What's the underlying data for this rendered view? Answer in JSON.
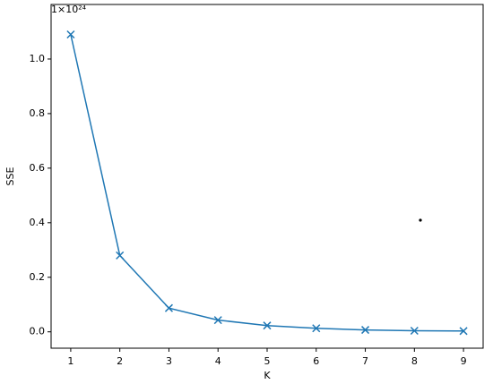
{
  "chart_data": {
    "type": "line",
    "x_label": "K",
    "y_label": "SSE",
    "axis_offset": "1×10²⁴",
    "x": [
      1,
      2,
      3,
      4,
      5,
      6,
      7,
      8,
      9
    ],
    "series": [
      {
        "color": "#1f77b4",
        "marker": "x",
        "values": [
          1.09,
          0.28,
          0.087,
          0.043,
          0.023,
          0.013,
          0.007,
          0.004,
          0.003
        ]
      }
    ],
    "xlim": [
      0.6,
      9.4
    ],
    "xticks": [
      1,
      2,
      3,
      4,
      5,
      6,
      7,
      8,
      9
    ],
    "ylim": [
      -0.06,
      1.2
    ],
    "yticks": [
      {
        "value": 0.0,
        "label": "0.0"
      },
      0.2,
      0.4,
      0.6,
      0.8,
      {
        "value": 1.0,
        "label": "1.0"
      }
    ]
  }
}
